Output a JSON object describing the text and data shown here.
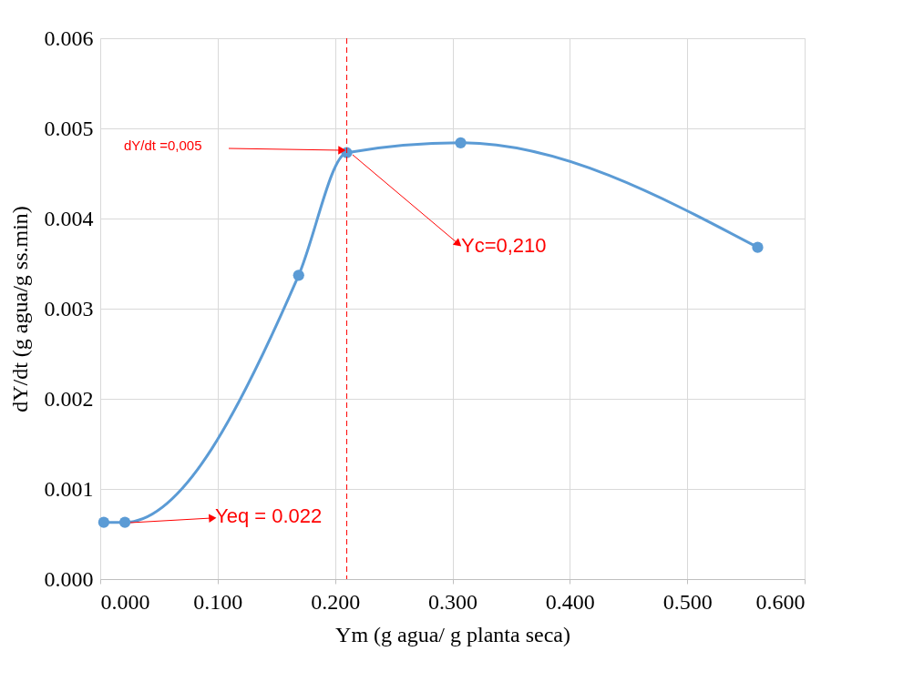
{
  "chart_data": {
    "type": "line",
    "xlabel": "Ym (g agua/ g planta seca)",
    "ylabel": "dY/dt (g agua/g ss.min)",
    "x": [
      0.003,
      0.021,
      0.169,
      0.21,
      0.307,
      0.56
    ],
    "series": [
      {
        "color": "#5b9bd5",
        "values": [
          0.00063,
          0.00063,
          0.00337,
          0.00473,
          0.00484,
          0.00368
        ]
      }
    ],
    "xlim": [
      0,
      0.6
    ],
    "xticks": [
      {
        "value": 0,
        "label": "0.000"
      },
      {
        "value": 0.1,
        "label": "0.100"
      },
      {
        "value": 0.2,
        "label": "0.200"
      },
      {
        "value": 0.3,
        "label": "0.300"
      },
      {
        "value": 0.4,
        "label": "0.400"
      },
      {
        "value": 0.5,
        "label": "0.500"
      },
      {
        "value": 0.6,
        "label": "0.600"
      }
    ],
    "ylim": [
      0,
      0.006
    ],
    "yticks": [
      {
        "value": 0,
        "label": "0.000"
      },
      {
        "value": 0.001,
        "label": "0.001"
      },
      {
        "value": 0.002,
        "label": "0.002"
      },
      {
        "value": 0.003,
        "label": "0.003"
      },
      {
        "value": 0.004,
        "label": "0.004"
      },
      {
        "value": 0.005,
        "label": "0.005"
      },
      {
        "value": 0.006,
        "label": "0.006"
      }
    ],
    "grid": true,
    "marker": "circle",
    "line_style": "solid",
    "ref_lines": [
      {
        "axis": "x",
        "value": 0.21,
        "label": null,
        "color": "#ff0000",
        "line_style": "dashed"
      }
    ],
    "annotations": [
      "dY/dt =0,005",
      "Yc=0,210",
      "Yeq = 0.022"
    ]
  }
}
